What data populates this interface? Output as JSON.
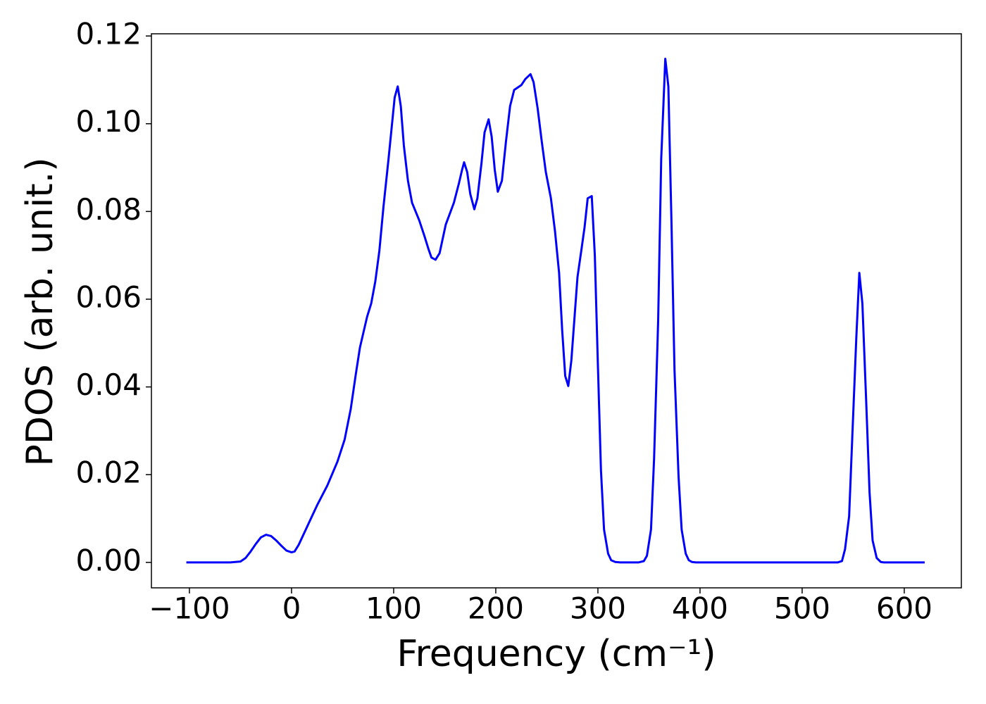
{
  "chart_data": {
    "type": "line",
    "xlabel": "Frequency (cm⁻¹)",
    "ylabel": "PDOS (arb. unit.)",
    "xlim": [
      -137.2,
      655.9
    ],
    "ylim": [
      -0.0058,
      0.1205
    ],
    "xticks": [
      {
        "value": -100,
        "label": "−100"
      },
      0,
      100,
      200,
      300,
      400,
      500,
      600
    ],
    "yticks": [
      {
        "value": 0,
        "label": "0.00"
      },
      {
        "value": 0.02,
        "label": "0.02"
      },
      {
        "value": 0.04,
        "label": "0.04"
      },
      {
        "value": 0.06,
        "label": "0.06"
      },
      {
        "value": 0.08,
        "label": "0.08"
      },
      {
        "value": 0.1,
        "label": "0.10"
      },
      {
        "value": 0.12,
        "label": "0.12"
      }
    ],
    "grid": false,
    "series": [
      {
        "color": "#0000ff",
        "x": [
          -103,
          -60,
          -50,
          -45,
          -40,
          -35,
          -30,
          -25,
          -20,
          -15,
          -10,
          -5,
          0,
          3,
          7,
          12,
          18,
          25,
          35,
          45,
          52,
          58,
          63,
          67,
          70,
          74,
          78,
          82,
          86,
          90,
          95,
          98,
          101,
          104,
          107,
          110,
          114,
          118,
          125,
          130,
          134,
          137,
          141,
          145,
          151,
          159,
          164,
          167,
          169,
          172,
          175,
          179,
          182,
          186,
          189,
          193,
          196,
          199,
          202,
          206,
          210,
          214,
          218,
          225,
          229,
          234,
          237,
          241,
          245,
          249,
          254,
          258,
          262,
          265,
          268,
          271,
          274,
          277,
          280,
          284,
          287,
          290,
          294,
          297,
          300,
          303,
          306,
          310,
          313,
          317,
          322,
          340,
          345,
          348,
          352,
          355,
          359,
          362,
          366,
          369,
          372,
          375,
          379,
          382,
          386,
          389,
          392,
          396,
          535,
          539,
          542,
          546,
          549,
          553,
          556,
          559,
          563,
          566,
          569,
          573,
          577,
          580,
          620
        ],
        "values": [
          0,
          0,
          0.0002,
          0.001,
          0.0025,
          0.0042,
          0.0057,
          0.0063,
          0.006,
          0.005,
          0.0038,
          0.0027,
          0.0023,
          0.0025,
          0.004,
          0.0065,
          0.0095,
          0.013,
          0.0175,
          0.023,
          0.028,
          0.035,
          0.043,
          0.049,
          0.052,
          0.056,
          0.059,
          0.064,
          0.071,
          0.081,
          0.092,
          0.099,
          0.106,
          0.1085,
          0.104,
          0.095,
          0.087,
          0.082,
          0.078,
          0.0745,
          0.0715,
          0.0695,
          0.069,
          0.0705,
          0.077,
          0.082,
          0.0865,
          0.0895,
          0.0912,
          0.089,
          0.084,
          0.0805,
          0.083,
          0.091,
          0.098,
          0.101,
          0.097,
          0.0895,
          0.0845,
          0.087,
          0.096,
          0.104,
          0.1077,
          0.1088,
          0.1102,
          0.1113,
          0.1095,
          0.1035,
          0.096,
          0.089,
          0.083,
          0.0755,
          0.066,
          0.053,
          0.0425,
          0.0402,
          0.046,
          0.0555,
          0.065,
          0.0715,
          0.0765,
          0.083,
          0.0835,
          0.07,
          0.045,
          0.021,
          0.0075,
          0.002,
          0.0005,
          0.0001,
          0,
          0,
          0.0003,
          0.0015,
          0.0075,
          0.0235,
          0.055,
          0.092,
          0.1148,
          0.1085,
          0.078,
          0.044,
          0.0195,
          0.0075,
          0.002,
          0.0005,
          0.0001,
          0,
          0,
          0.0003,
          0.003,
          0.0105,
          0.028,
          0.051,
          0.066,
          0.059,
          0.035,
          0.016,
          0.005,
          0.001,
          0.0001,
          0,
          0
        ]
      }
    ]
  }
}
